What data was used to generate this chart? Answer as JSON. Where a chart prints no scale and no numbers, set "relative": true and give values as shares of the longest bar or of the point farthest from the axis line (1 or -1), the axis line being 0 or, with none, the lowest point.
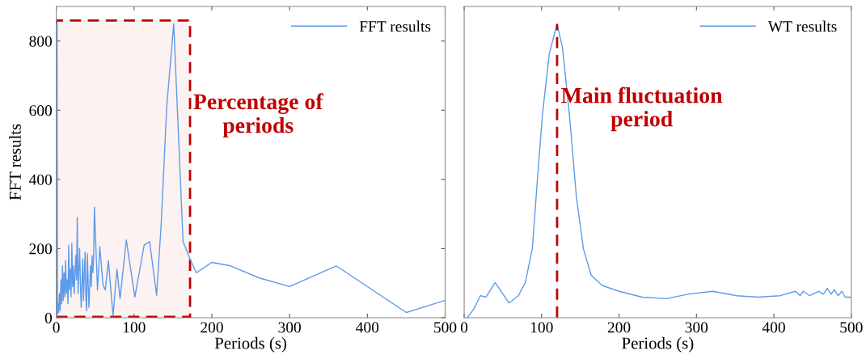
{
  "chart_data": [
    {
      "type": "line",
      "xlabel": "Periods (s)",
      "ylabel": "FFT results",
      "xlim": [
        0,
        500
      ],
      "xticks": [
        0,
        100,
        200,
        300,
        400,
        500
      ],
      "ylim": [
        0,
        900
      ],
      "yticks": [
        0,
        200,
        400,
        600,
        800
      ],
      "legend": "top right",
      "grid": false,
      "series": [
        {
          "name": "FFT results",
          "color": "#5b9bea",
          "x": [
            0.5,
            1,
            1.5,
            2,
            3,
            4,
            5,
            6,
            7,
            8,
            9,
            10,
            11,
            12,
            13,
            14,
            15,
            16,
            17,
            18,
            19,
            20,
            21,
            22,
            23,
            25,
            26,
            27,
            28,
            30,
            31,
            32,
            34,
            35,
            37,
            38,
            39,
            40,
            41,
            42,
            44,
            45,
            46,
            47,
            48,
            49,
            53,
            56,
            60,
            63,
            67,
            73,
            78,
            82,
            90,
            101,
            113,
            120,
            129,
            135,
            142,
            151,
            163,
            172,
            180,
            200,
            224,
            261,
            300,
            360,
            450,
            500
          ],
          "values": [
            0,
            850,
            10,
            40,
            15,
            70,
            20,
            110,
            40,
            150,
            50,
            130,
            60,
            165,
            70,
            110,
            40,
            210,
            80,
            140,
            60,
            215,
            90,
            150,
            70,
            180,
            110,
            290,
            70,
            200,
            100,
            30,
            170,
            50,
            190,
            60,
            20,
            185,
            100,
            30,
            150,
            90,
            180,
            130,
            170,
            320,
            80,
            205,
            95,
            80,
            165,
            5,
            140,
            55,
            225,
            60,
            210,
            220,
            65,
            275,
            610,
            850,
            220,
            170,
            130,
            160,
            150,
            115,
            90,
            150,
            15,
            50
          ]
        }
      ],
      "bands": [
        {
          "axis": "x",
          "from": 0,
          "to": 172,
          "label": "Percentage of\nperiods",
          "color": "#c00000"
        }
      ]
    },
    {
      "type": "line",
      "xlabel": "Periods (s)",
      "xlim": [
        0,
        500
      ],
      "xticks": [
        0,
        100,
        200,
        300,
        400,
        500
      ],
      "relative": true,
      "legend": "top right",
      "grid": false,
      "series": [
        {
          "name": "WT results",
          "color": "#5b9bea",
          "x": [
            4,
            12.5,
            21,
            28,
            40,
            49,
            58,
            70,
            79,
            88,
            94,
            101,
            110,
            120,
            127,
            136,
            145,
            154,
            164,
            178,
            200,
            230,
            261,
            289,
            321,
            352,
            380,
            408,
            428,
            434,
            438,
            446,
            458,
            464,
            469,
            474,
            478,
            483,
            488,
            492,
            500
          ],
          "values": [
            0,
            0.03,
            0.075,
            0.07,
            0.12,
            0.085,
            0.05,
            0.075,
            0.12,
            0.235,
            0.45,
            0.69,
            0.9,
            1,
            0.92,
            0.69,
            0.41,
            0.235,
            0.145,
            0.11,
            0.09,
            0.07,
            0.065,
            0.08,
            0.09,
            0.075,
            0.07,
            0.075,
            0.09,
            0.075,
            0.09,
            0.075,
            0.09,
            0.08,
            0.1,
            0.08,
            0.095,
            0.075,
            0.09,
            0.07,
            0.07
          ]
        }
      ],
      "ref_lines": [
        {
          "axis": "x",
          "value": 120,
          "label": "Main fluctuation\nperiod",
          "color": "#c00000",
          "line_style": "dashed"
        }
      ]
    }
  ]
}
